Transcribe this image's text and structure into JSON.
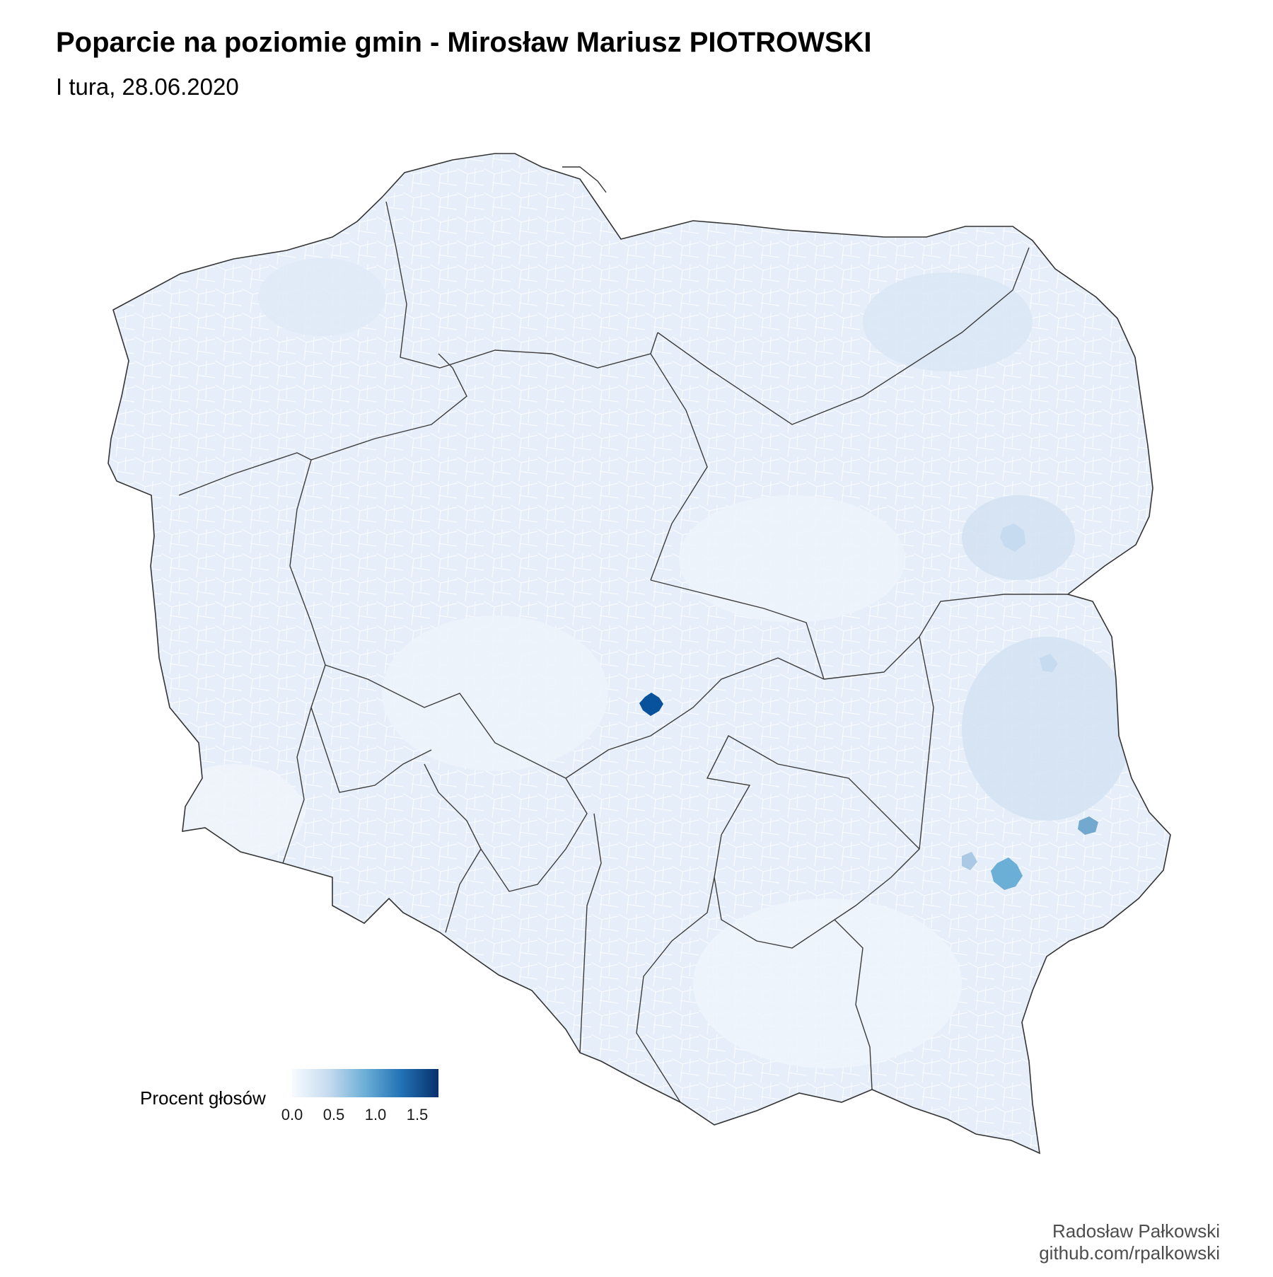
{
  "header": {
    "title": "Poparcie na poziomie gmin - Mirosław Mariusz PIOTROWSKI",
    "subtitle": "I tura, 28.06.2020"
  },
  "legend": {
    "title": "Procent głosów",
    "ticks": [
      "0.0",
      "0.5",
      "1.0",
      "1.5"
    ],
    "range": [
      0.0,
      1.75
    ],
    "colors": {
      "low": "#f7fbff",
      "mid": "#6baed6",
      "high": "#08306b"
    }
  },
  "map": {
    "country": "Poland",
    "fill_base": "#e6eef9",
    "border_color": "#ffffff",
    "outline_color": "#333333",
    "highlights": [
      {
        "region": "Łódź area",
        "level": "high",
        "color": "#08519c"
      },
      {
        "region": "Lublin area",
        "level": "medium",
        "color": "#6baed6"
      },
      {
        "region": "Chełm area",
        "level": "medium",
        "color": "#74a9cf"
      },
      {
        "region": "Białystok area",
        "level": "low-medium",
        "color": "#c6dbef"
      }
    ]
  },
  "caption": {
    "author": "Radosław Pałkowski",
    "source": "github.com/rpalkowski"
  }
}
